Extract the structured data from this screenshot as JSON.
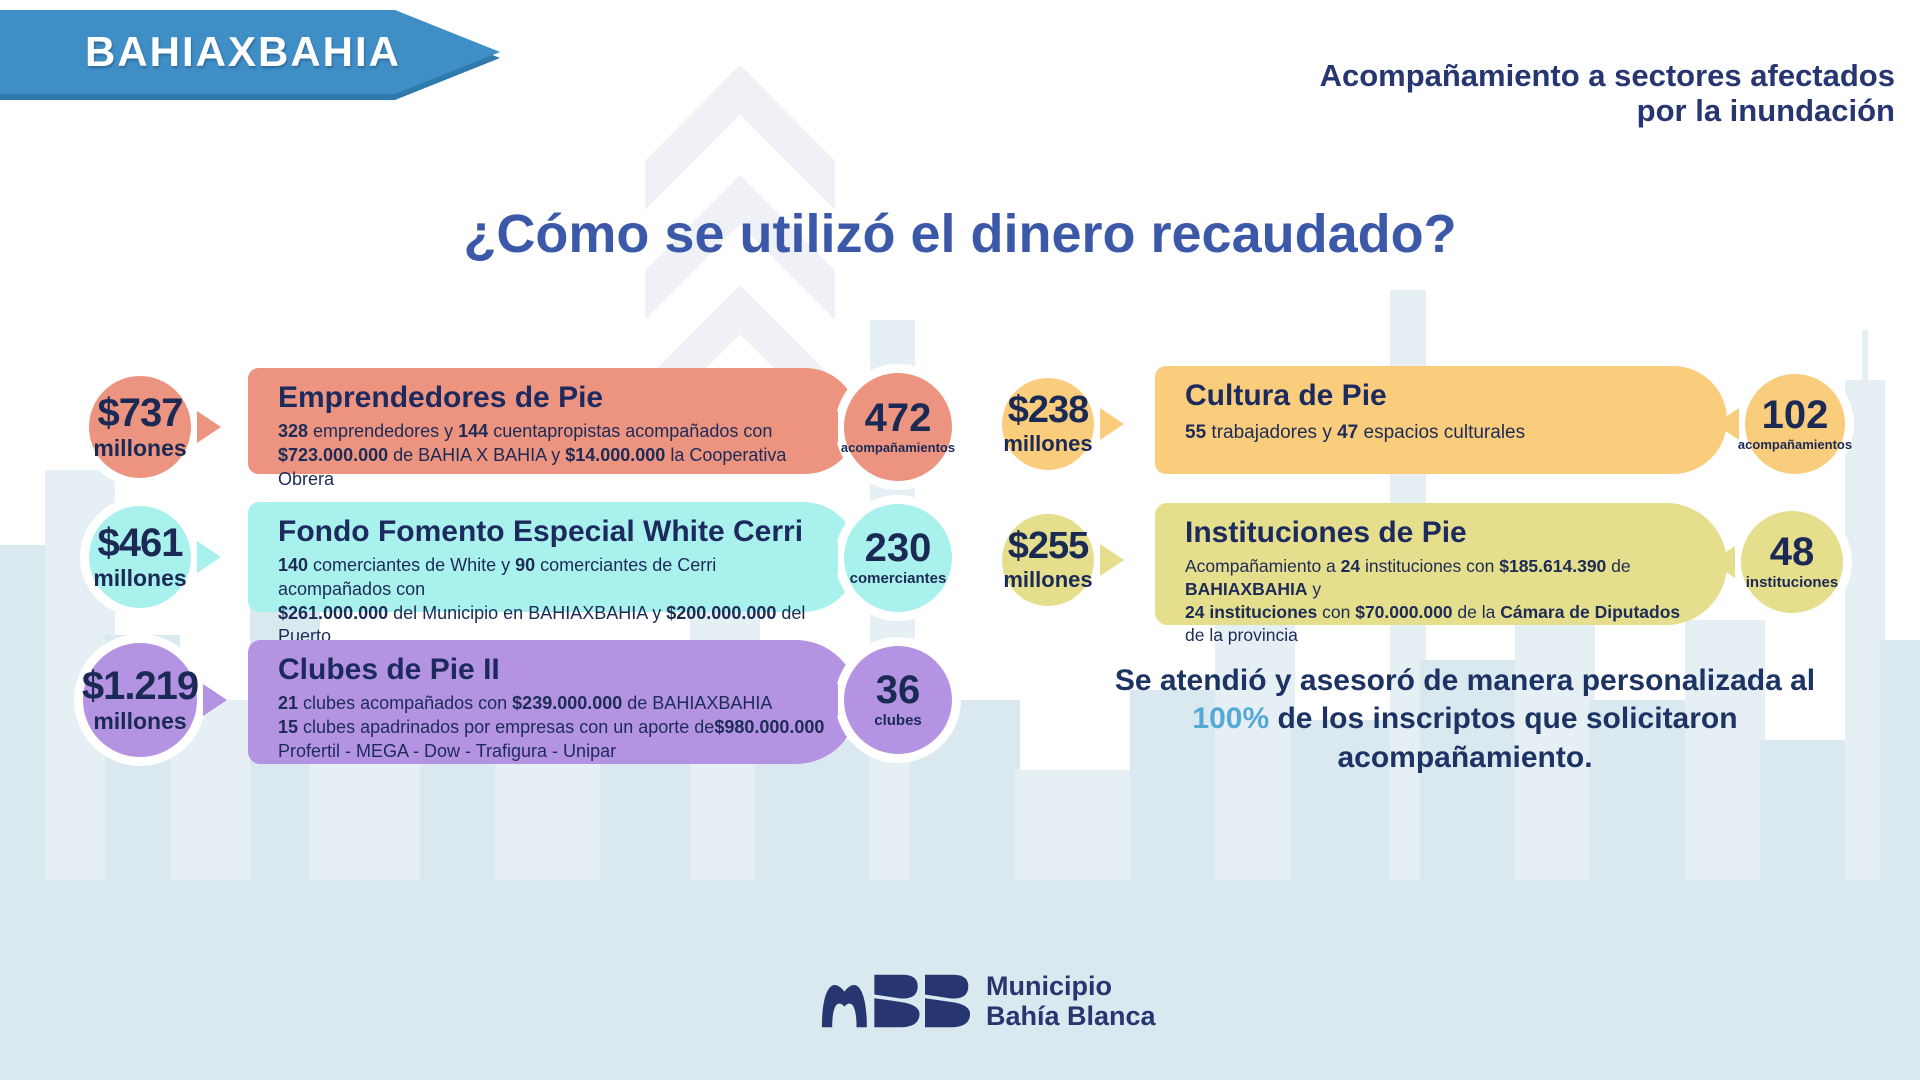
{
  "banner": {
    "label": "BAHIAXBAHIA"
  },
  "header": {
    "line1": "Acompañamiento a sectores afectados",
    "line2": "por la inundación"
  },
  "title": "¿Cómo se utilizó el dinero recaudado?",
  "colors": {
    "banner_blue": "#3F8EC6",
    "banner_edge": "#2E7AAD",
    "title_blue": "#3B58A9",
    "navy_text": "#1C2A5E",
    "highlight_cyan": "#54A9D6",
    "skyline_base": "#DAE8EF",
    "skyline_light": "#E6F0F4",
    "chevron_watermark": "#EFF1F6"
  },
  "programs": [
    {
      "amount": "$737",
      "amount_unit": "millones",
      "name": "Emprendedores de Pie",
      "body": [
        [
          {
            "t": "328",
            "b": true
          },
          {
            "t": " emprendedores y "
          },
          {
            "t": "144",
            "b": true
          },
          {
            "t": " cuentapropistas acompañados con"
          }
        ],
        [
          {
            "t": "$723.000.000",
            "b": true
          },
          {
            "t": " de BAHIA X BAHIA y "
          },
          {
            "t": "$14.000.000",
            "b": true
          },
          {
            "t": " la Cooperativa Obrera"
          }
        ]
      ],
      "count": "472",
      "count_label": "acompañamientos",
      "color": "#EC947F"
    },
    {
      "amount": "$461",
      "amount_unit": "millones",
      "name": "Fondo Fomento Especial White Cerri",
      "body": [
        [
          {
            "t": "140",
            "b": true
          },
          {
            "t": " comerciantes de White y "
          },
          {
            "t": "90",
            "b": true
          },
          {
            "t": " comerciantes de Cerri acompañados con"
          }
        ],
        [
          {
            "t": "$261.000.000",
            "b": true
          },
          {
            "t": " del Municipio en BAHIAXBAHIA y "
          },
          {
            "t": "$200.000.000",
            "b": true
          },
          {
            "t": " del Puerto"
          }
        ]
      ],
      "count": "230",
      "count_label": "comerciantes",
      "color": "#A9F1ED"
    },
    {
      "amount": "$1.219",
      "amount_unit": "millones",
      "name": "Clubes de Pie II",
      "body": [
        [
          {
            "t": "21",
            "b": true
          },
          {
            "t": " clubes acompañados con "
          },
          {
            "t": "$239.000.000",
            "b": true
          },
          {
            "t": " de BAHIAXBAHIA"
          }
        ],
        [
          {
            "t": "15",
            "b": true
          },
          {
            "t": " clubes apadrinados por empresas con un aporte de"
          },
          {
            "t": "$980.000.000",
            "b": true
          }
        ],
        [
          {
            "t": "Profertil - MEGA - Dow - Trafigura - Unipar"
          }
        ]
      ],
      "count": "36",
      "count_label": "clubes",
      "color": "#B494E2"
    },
    {
      "amount": "$238",
      "amount_unit": "millones",
      "name": "Cultura de Pie",
      "body": [
        [
          {
            "t": "55",
            "b": true
          },
          {
            "t": " trabajadores y "
          },
          {
            "t": "47",
            "b": true
          },
          {
            "t": " espacios culturales"
          }
        ]
      ],
      "count": "102",
      "count_label": "acompañamientos",
      "color": "#FACD7D"
    },
    {
      "amount": "$255",
      "amount_unit": "millones",
      "name": "Instituciones de Pie",
      "body": [
        [
          {
            "t": "Acompañamiento a "
          },
          {
            "t": "24",
            "b": true
          },
          {
            "t": " instituciones con "
          },
          {
            "t": "$185.614.390",
            "b": true
          },
          {
            "t": " de "
          },
          {
            "t": "BAHIAXBAHIA",
            "b": true
          },
          {
            "t": " y"
          }
        ],
        [
          {
            "t": "24 instituciones",
            "b": true
          },
          {
            "t": " con "
          },
          {
            "t": "$70.000.000",
            "b": true
          },
          {
            "t": " de la "
          },
          {
            "t": "Cámara de Diputados",
            "b": true
          },
          {
            "t": " de la provincia"
          }
        ]
      ],
      "count": "48",
      "count_label": "instituciones",
      "color": "#E5DE8C"
    }
  ],
  "note": {
    "line1": "Se atendió y asesoró de manera personalizada al",
    "highlight": "100%",
    "line2_rest": " de los inscriptos que solicitaron",
    "line3": "acompañamiento."
  },
  "footer": {
    "org_line1": "Municipio",
    "org_line2": "Bahía Blanca"
  }
}
